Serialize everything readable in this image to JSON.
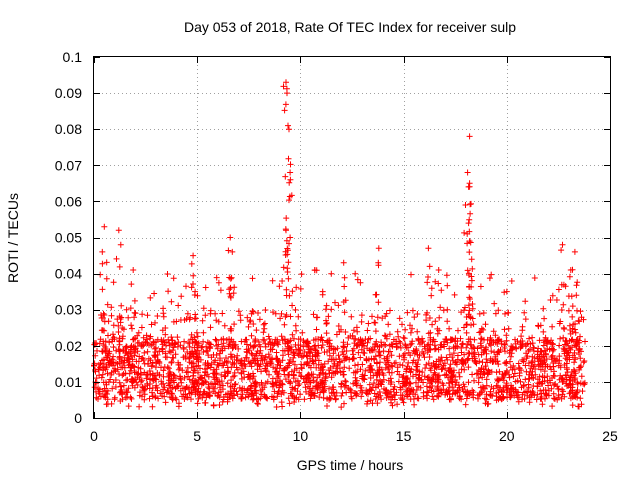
{
  "chart_data": {
    "type": "scatter",
    "title": "Day 053 of 2018, Rate Of TEC Index for receiver sulp",
    "xlabel": "GPS time / hours",
    "ylabel": "ROTI / TECUs",
    "xlim": [
      0,
      25
    ],
    "ylim": [
      0,
      0.1
    ],
    "xticks": [
      0,
      5,
      10,
      15,
      20,
      25
    ],
    "xtick_labels": [
      "0",
      "5",
      "10",
      "15",
      "20",
      "25"
    ],
    "yticks": [
      0,
      0.01,
      0.02,
      0.03,
      0.04,
      0.05,
      0.06,
      0.07,
      0.08,
      0.09,
      0.1
    ],
    "ytick_labels": [
      "0",
      "0.01",
      "0.02",
      "0.03",
      "0.04",
      "0.05",
      "0.06",
      "0.07",
      "0.08",
      "0.09",
      "0.1"
    ],
    "grid": true,
    "marker": "+",
    "color": "#ff0000",
    "x_data_range": [
      0,
      23.8
    ],
    "dense_band": {
      "low": 0.005,
      "high": 0.022
    },
    "notable_points": [
      {
        "x": 0.5,
        "y": 0.053
      },
      {
        "x": 0.4,
        "y": 0.046
      },
      {
        "x": 1.2,
        "y": 0.052
      },
      {
        "x": 1.3,
        "y": 0.048
      },
      {
        "x": 1.9,
        "y": 0.041
      },
      {
        "x": 4.8,
        "y": 0.045
      },
      {
        "x": 4.9,
        "y": 0.035
      },
      {
        "x": 6.6,
        "y": 0.05
      },
      {
        "x": 6.7,
        "y": 0.046
      },
      {
        "x": 9.3,
        "y": 0.093
      },
      {
        "x": 9.35,
        "y": 0.09
      },
      {
        "x": 9.4,
        "y": 0.081
      },
      {
        "x": 9.45,
        "y": 0.08
      },
      {
        "x": 9.5,
        "y": 0.068
      },
      {
        "x": 9.3,
        "y": 0.052
      },
      {
        "x": 9.5,
        "y": 0.05
      },
      {
        "x": 10.7,
        "y": 0.041
      },
      {
        "x": 12.1,
        "y": 0.043
      },
      {
        "x": 13.8,
        "y": 0.047
      },
      {
        "x": 16.2,
        "y": 0.047
      },
      {
        "x": 16.7,
        "y": 0.041
      },
      {
        "x": 18.2,
        "y": 0.078
      },
      {
        "x": 18.1,
        "y": 0.068
      },
      {
        "x": 18.2,
        "y": 0.065
      },
      {
        "x": 18.0,
        "y": 0.059
      },
      {
        "x": 18.15,
        "y": 0.054
      },
      {
        "x": 18.2,
        "y": 0.049
      },
      {
        "x": 18.3,
        "y": 0.044
      },
      {
        "x": 20.0,
        "y": 0.035
      },
      {
        "x": 22.7,
        "y": 0.048
      },
      {
        "x": 23.3,
        "y": 0.046
      },
      {
        "x": 23.1,
        "y": 0.041
      },
      {
        "x": 23.2,
        "y": 0.031
      }
    ]
  }
}
